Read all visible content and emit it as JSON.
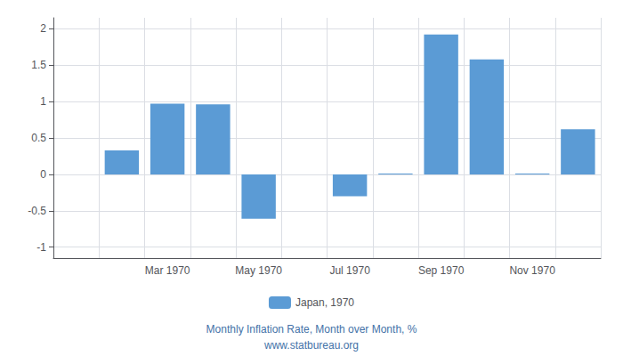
{
  "chart_data": {
    "type": "bar",
    "categories": [
      null,
      null,
      "Mar 1970",
      null,
      "May 1970",
      null,
      "Jul 1970",
      null,
      "Sep 1970",
      null,
      "Nov 1970",
      null
    ],
    "series": [
      {
        "name": "Japan, 1970",
        "color": "#5b9bd5",
        "values": [
          0.0,
          0.33,
          0.97,
          0.96,
          -0.61,
          0.0,
          -0.3,
          0.01,
          1.92,
          1.58,
          0.01,
          0.62
        ]
      }
    ],
    "ylim": [
      -1.15,
      2.15
    ],
    "yticks": [
      -1,
      -0.5,
      0,
      0.5,
      1,
      1.5,
      2
    ],
    "grid": true,
    "legend": "bottom",
    "annotations": [
      "Monthly Inflation Rate, Month over Month, %",
      "www.statbureau.org"
    ]
  }
}
